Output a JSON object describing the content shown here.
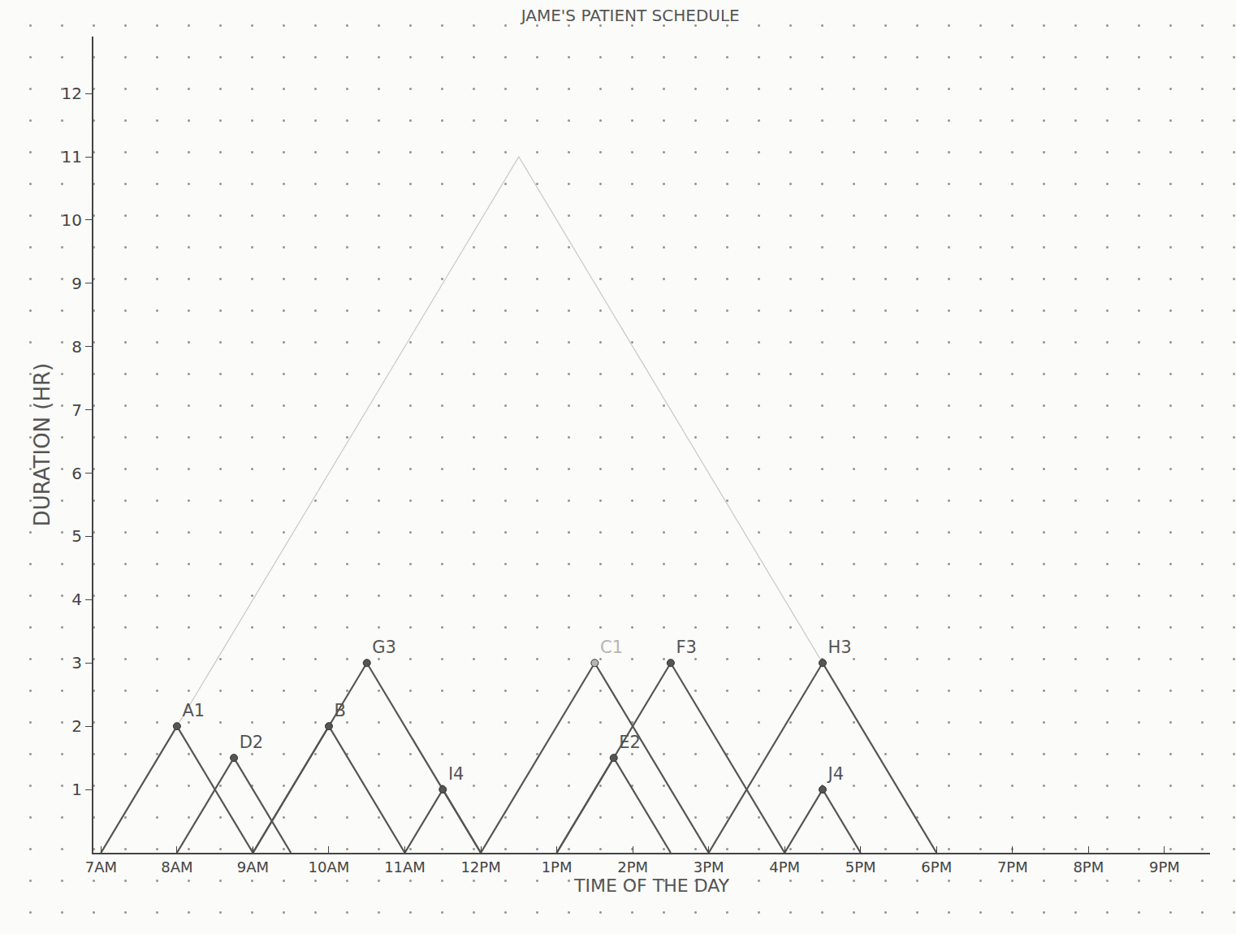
{
  "chart_data": {
    "type": "scatter",
    "title": "JAME'S PATIENT SCHEDULE",
    "x_label": "TIME OF THE DAY",
    "y_label": "DURATION (HR)",
    "xlim": [
      6.9,
      21.6
    ],
    "ylim": [
      0,
      12.9
    ],
    "xticks": [
      {
        "value": 7,
        "label": "7AM"
      },
      {
        "value": 8,
        "label": "8AM"
      },
      {
        "value": 9,
        "label": "9AM"
      },
      {
        "value": 10,
        "label": "10AM"
      },
      {
        "value": 11,
        "label": "11AM"
      },
      {
        "value": 12,
        "label": "12PM"
      },
      {
        "value": 13,
        "label": "1PM"
      },
      {
        "value": 14,
        "label": "2PM"
      },
      {
        "value": 15,
        "label": "3PM"
      },
      {
        "value": 16,
        "label": "4PM"
      },
      {
        "value": 17,
        "label": "5PM"
      },
      {
        "value": 18,
        "label": "6PM"
      },
      {
        "value": 19,
        "label": "7PM"
      },
      {
        "value": 20,
        "label": "8PM"
      },
      {
        "value": 21,
        "label": "9PM"
      }
    ],
    "yticks": [
      1,
      2,
      3,
      4,
      5,
      6,
      7,
      8,
      9,
      10,
      11,
      12
    ],
    "grid": false,
    "data_labels": true,
    "marker": "circle",
    "color": "#555555",
    "envelope": {
      "x": 12.5,
      "duration": 11,
      "color": "#c8c8c8"
    },
    "points": [
      {
        "label": "A1",
        "x": 8,
        "duration": 2,
        "color": "#555555"
      },
      {
        "label": "D2",
        "x": 8.75,
        "duration": 1.5,
        "color": "#555555"
      },
      {
        "label": "B",
        "x": 10,
        "duration": 2,
        "color": "#555555"
      },
      {
        "label": "G3",
        "x": 10.5,
        "duration": 3,
        "color": "#555555"
      },
      {
        "label": "I4",
        "x": 11.5,
        "duration": 1,
        "color": "#555555"
      },
      {
        "label": "C1",
        "x": 13.5,
        "duration": 3,
        "color": "#b5b5b5"
      },
      {
        "label": "E2",
        "x": 13.75,
        "duration": 1.5,
        "color": "#555555"
      },
      {
        "label": "F3",
        "x": 14.5,
        "duration": 3,
        "color": "#555555"
      },
      {
        "label": "H3",
        "x": 16.5,
        "duration": 3,
        "color": "#555555"
      },
      {
        "label": "J4",
        "x": 16.5,
        "duration": 1,
        "color": "#555555"
      }
    ]
  }
}
